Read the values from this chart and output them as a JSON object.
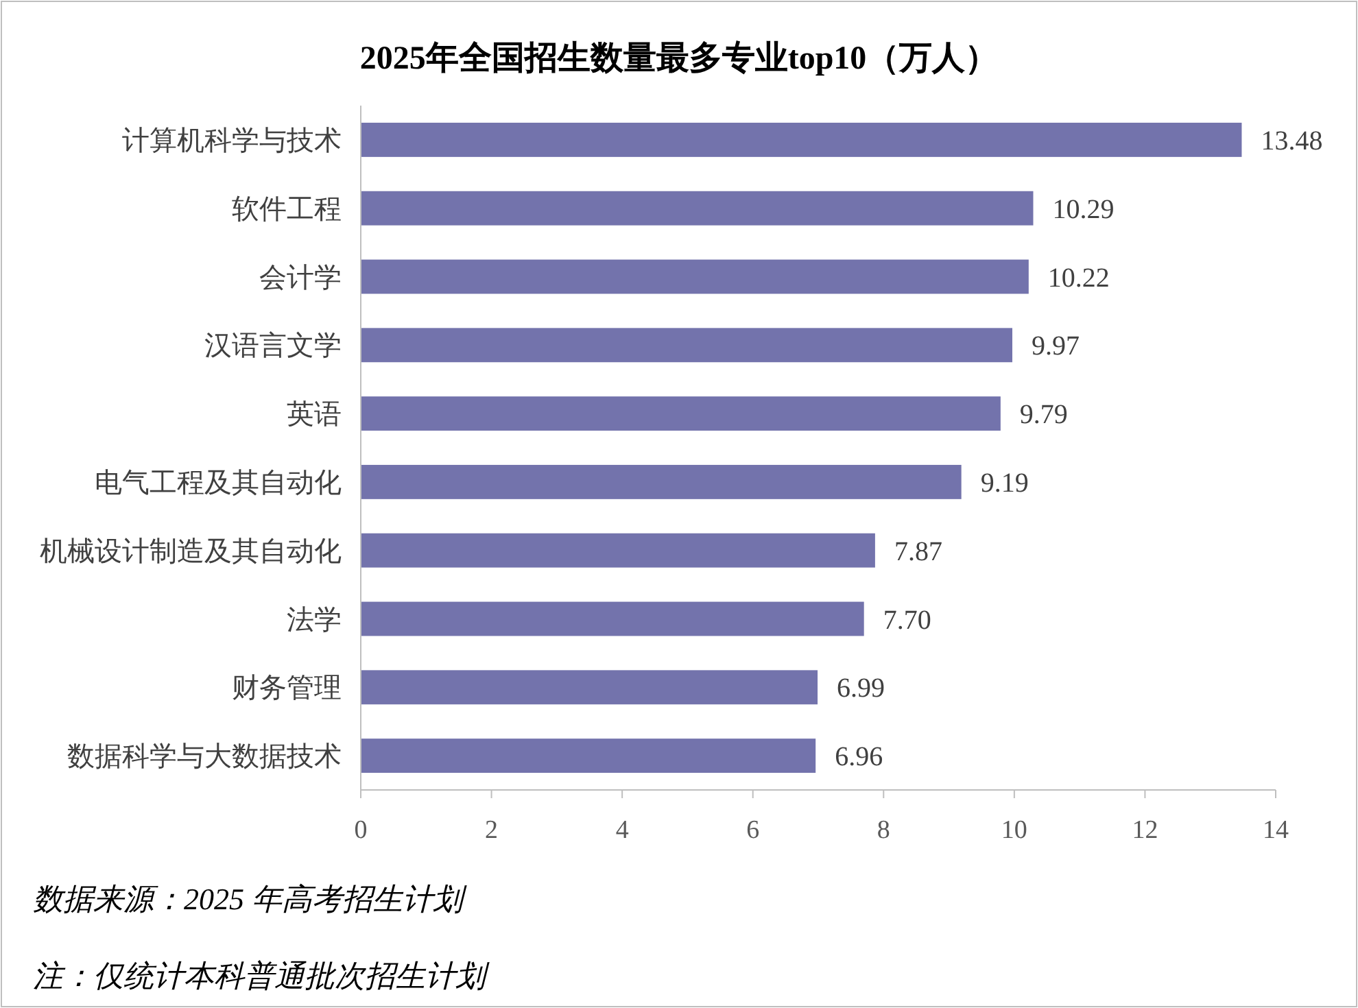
{
  "chart_data": {
    "type": "bar",
    "orientation": "horizontal",
    "title": "2025年全国招生数量最多专业top10（万人）",
    "categories": [
      "计算机科学与技术",
      "软件工程",
      "会计学",
      "汉语言文学",
      "英语",
      "电气工程及其自动化",
      "机械设计制造及其自动化",
      "法学",
      "财务管理",
      "数据科学与大数据技术"
    ],
    "values": [
      13.48,
      10.29,
      10.22,
      9.97,
      9.79,
      9.19,
      7.87,
      7.7,
      6.99,
      6.96
    ],
    "value_labels": [
      "13.48",
      "10.29",
      "10.22",
      "9.97",
      "9.79",
      "9.19",
      "7.87",
      "7.70",
      "6.99",
      "6.96"
    ],
    "color": "#7373ac",
    "xlim": [
      0,
      14
    ],
    "xticks": [
      0,
      2,
      4,
      6,
      8,
      10,
      12,
      14
    ],
    "grid": false,
    "annotations": [
      "数据来源：2025 年高考招生计划",
      "注：仅统计本科普通批次招生计划"
    ]
  }
}
